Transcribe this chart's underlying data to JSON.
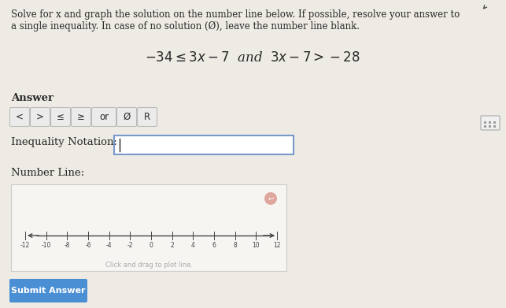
{
  "bg_color": "#eeeae4",
  "text_color": "#2a2a2a",
  "instruction_line1": "Solve for x and graph the solution on the number line below. If possible, resolve your answer to",
  "instruction_line2": "a single inequality. In case of no solution (Ø), leave the number line blank.",
  "equation": "$-34 \\leq 3x - 7$  and  $3x - 7 > -28$",
  "answer_label": "Answer",
  "button_labels": [
    "<",
    ">",
    "≤",
    "≥",
    "or",
    "Ø",
    "R"
  ],
  "inequality_label": "Inequality Notation:",
  "number_line_label": "Number Line:",
  "submit_text": "Submit Answer",
  "submit_bg": "#4a8fd4",
  "submit_text_color": "#ffffff",
  "number_line_ticks": [
    -12,
    -10,
    -8,
    -6,
    -4,
    -2,
    0,
    2,
    4,
    6,
    8,
    10,
    12
  ],
  "number_line_hint": "Click and drag to plot line.",
  "number_line_box_color": "#f7f5f2",
  "number_line_box_border": "#cccccc",
  "button_box_color": "#ebebeb",
  "button_box_border": "#bbbbbb",
  "input_box_border": "#7799cc",
  "cursor_color": "#222222",
  "icon_box_color": "#f0f0f0",
  "icon_box_border": "#aaaaaa",
  "eraser_color": "#d4857a",
  "arrow_color": "#444444"
}
